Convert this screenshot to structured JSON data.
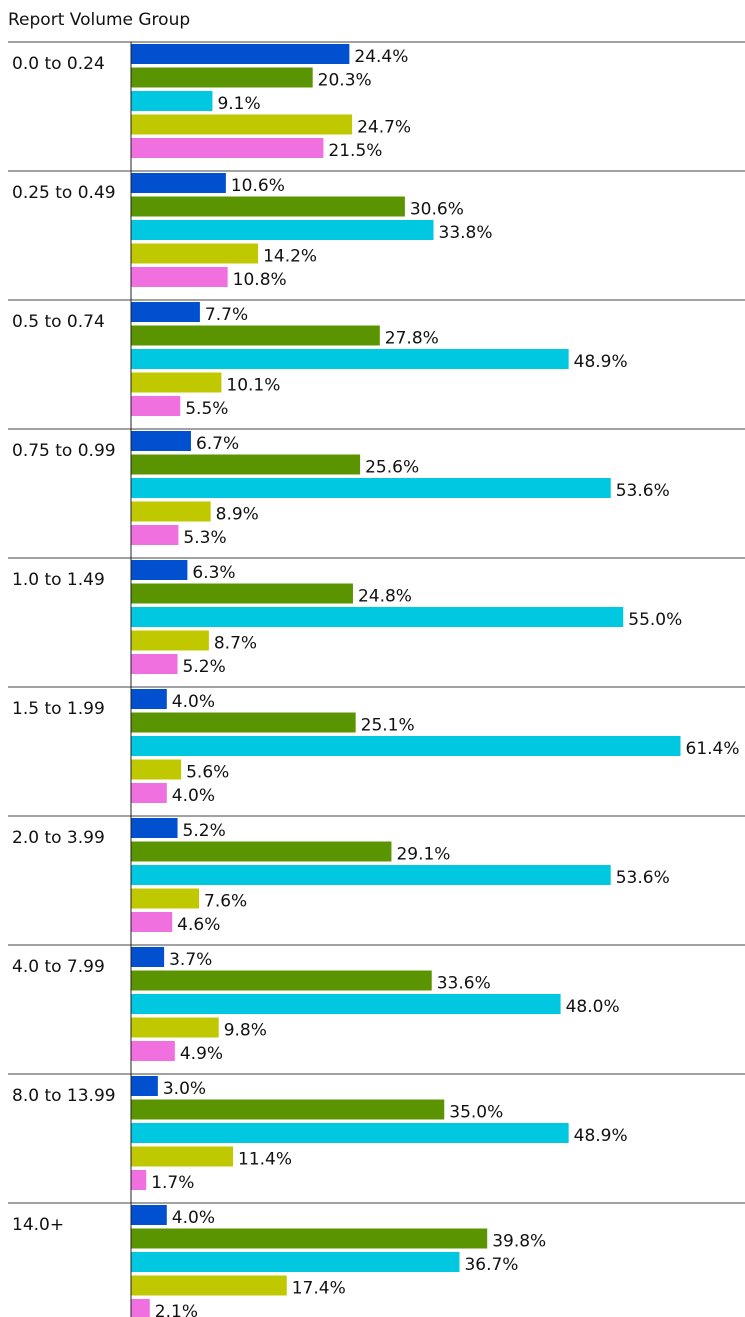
{
  "chart_data": {
    "type": "grouped_hbar",
    "title": "Report Volume Group",
    "categories": [
      "0.0 to 0.24",
      "0.25 to 0.49",
      "0.5 to 0.74",
      "0.75 to 0.99",
      "1.0 to 1.49",
      "1.5 to 1.99",
      "2.0 to 3.99",
      "4.0 to 7.99",
      "8.0 to 13.99",
      "14.0+"
    ],
    "series": [
      {
        "color": "#0050d0",
        "values": [
          24.4,
          10.6,
          7.7,
          6.7,
          6.3,
          4.0,
          5.2,
          3.7,
          3.0,
          4.0
        ],
        "value_labels": [
          "24.4%",
          "10.6%",
          "7.7%",
          "6.7%",
          "6.3%",
          "4.0%",
          "5.2%",
          "3.7%",
          "3.0%",
          "4.0%"
        ]
      },
      {
        "color": "#5a9400",
        "values": [
          20.3,
          30.6,
          27.8,
          25.6,
          24.8,
          25.1,
          29.1,
          33.6,
          35.0,
          39.8
        ],
        "value_labels": [
          "20.3%",
          "30.6%",
          "27.8%",
          "25.6%",
          "24.8%",
          "25.1%",
          "29.1%",
          "33.6%",
          "35.0%",
          "39.8%"
        ]
      },
      {
        "color": "#00c8e0",
        "values": [
          9.1,
          33.8,
          48.9,
          53.6,
          55.0,
          61.4,
          53.6,
          48.0,
          48.9,
          36.7
        ],
        "value_labels": [
          "9.1%",
          "33.8%",
          "48.9%",
          "53.6%",
          "55.0%",
          "61.4%",
          "53.6%",
          "48.0%",
          "48.9%",
          "36.7%"
        ]
      },
      {
        "color": "#c0c800",
        "values": [
          24.7,
          14.2,
          10.1,
          8.9,
          8.7,
          5.6,
          7.6,
          9.8,
          11.4,
          17.4
        ],
        "value_labels": [
          "24.7%",
          "14.2%",
          "10.1%",
          "8.9%",
          "8.7%",
          "5.6%",
          "7.6%",
          "9.8%",
          "11.4%",
          "17.4%"
        ]
      },
      {
        "color": "#f070e0",
        "values": [
          21.5,
          10.8,
          5.5,
          5.3,
          5.2,
          4.0,
          4.6,
          4.9,
          1.7,
          2.1
        ],
        "value_labels": [
          "21.5%",
          "10.8%",
          "5.5%",
          "5.3%",
          "5.2%",
          "4.0%",
          "4.6%",
          "4.9%",
          "1.7%",
          "2.1%"
        ]
      }
    ]
  }
}
